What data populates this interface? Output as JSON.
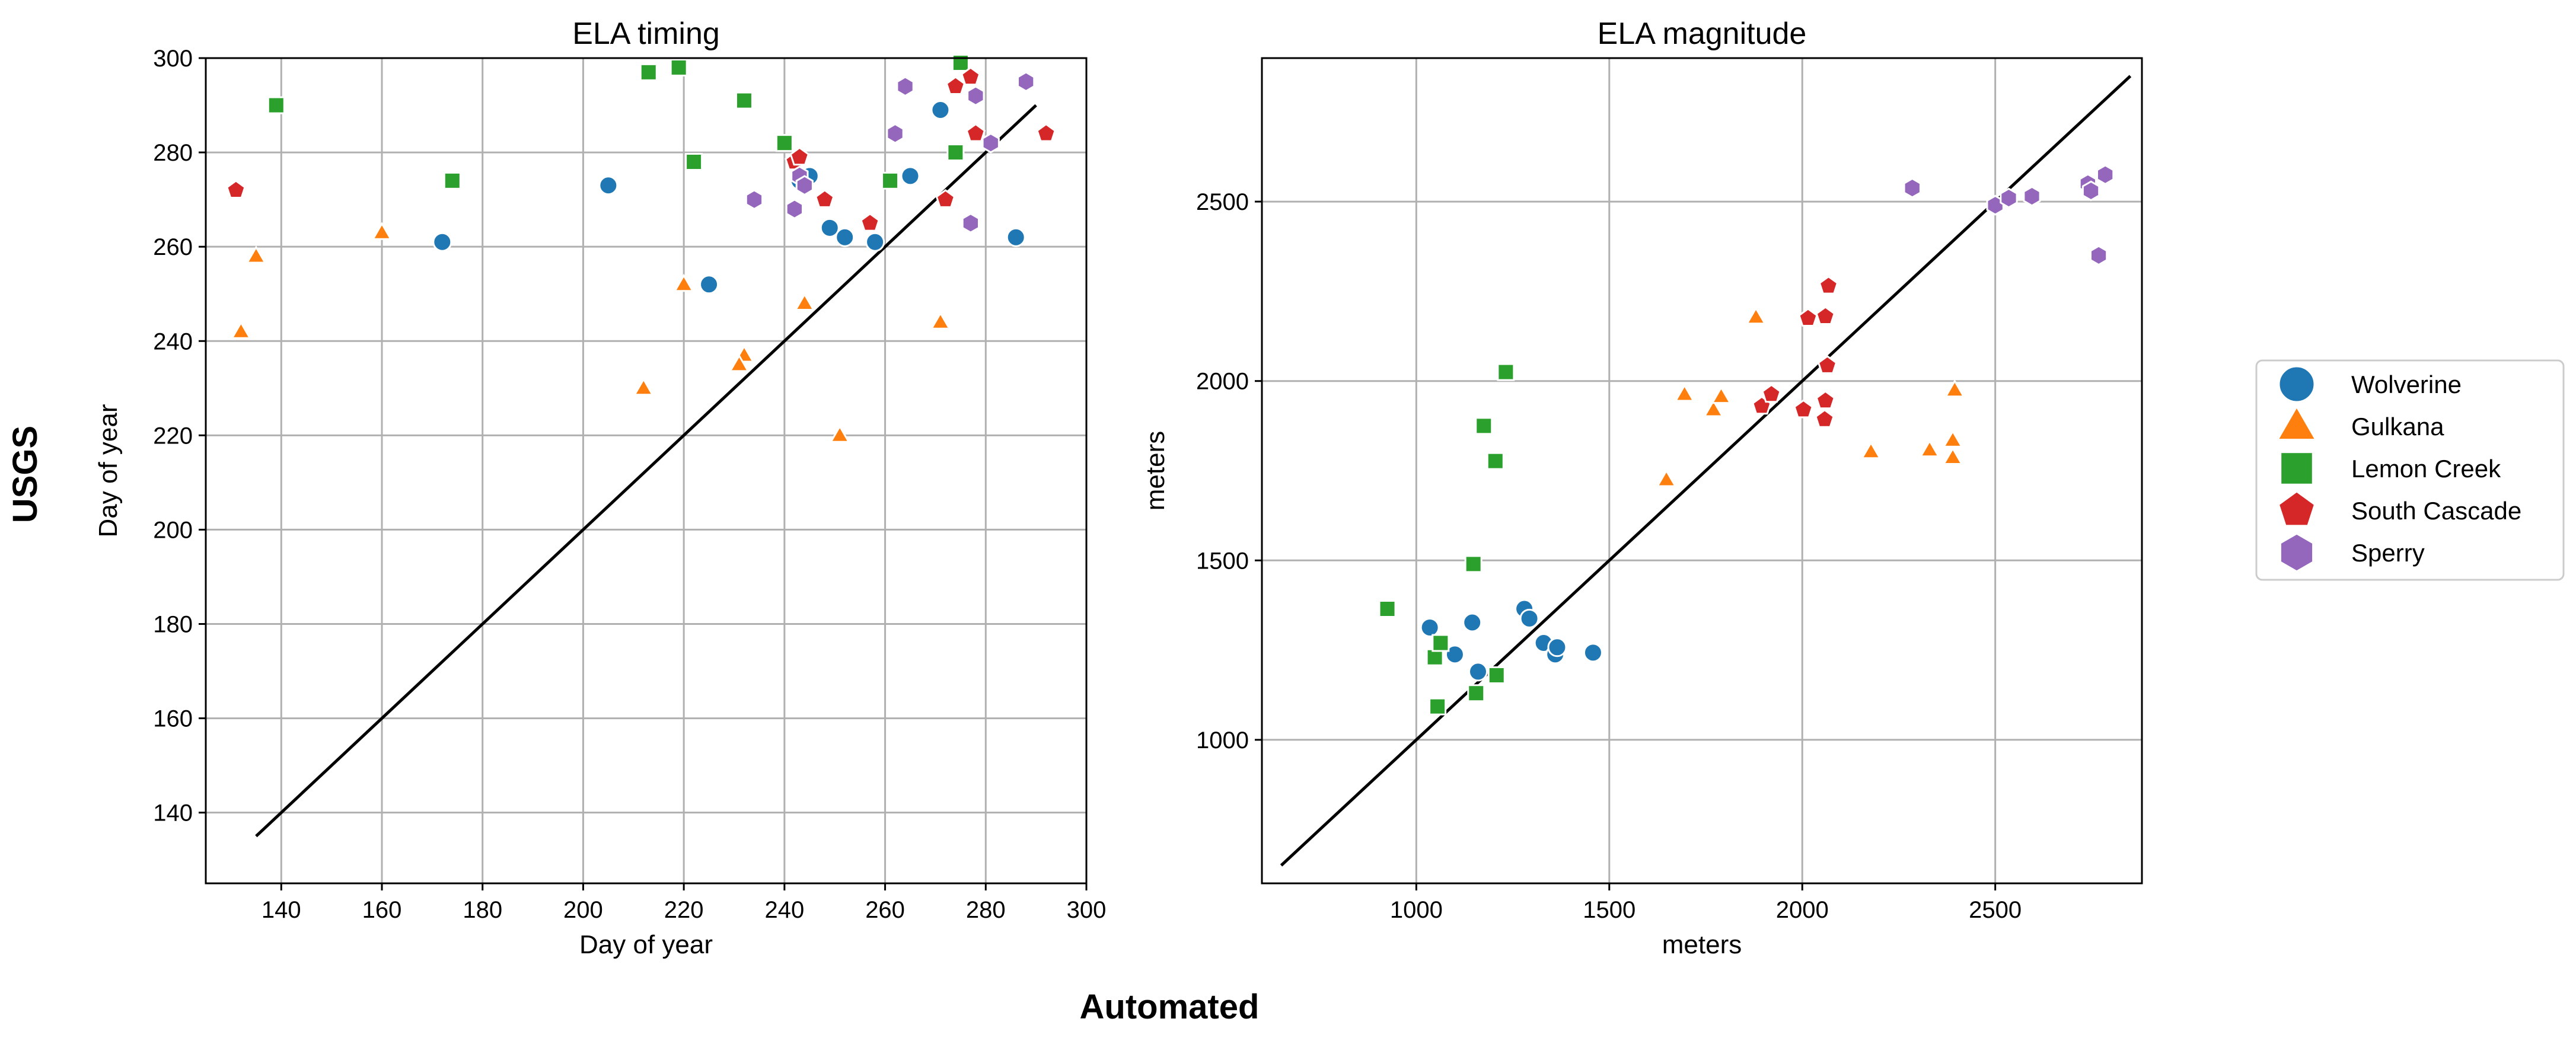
{
  "figure": {
    "ylabel": "USGS",
    "xlabel": "Automated"
  },
  "legend": {
    "placement": "right",
    "entries": [
      {
        "name": "Wolverine",
        "marker": "circle",
        "color": "#1f77b4"
      },
      {
        "name": "Gulkana",
        "marker": "triangle",
        "color": "#ff7f0e"
      },
      {
        "name": "Lemon Creek",
        "marker": "square",
        "color": "#2ca02c"
      },
      {
        "name": "South Cascade",
        "marker": "pentagon",
        "color": "#d62728"
      },
      {
        "name": "Sperry",
        "marker": "hexagon",
        "color": "#9467bd"
      }
    ]
  },
  "chart_data": [
    {
      "type": "scatter",
      "title": "ELA timing",
      "xlabel": "Day of year",
      "ylabel": "Day of year",
      "xlim": [
        125,
        300
      ],
      "ylim": [
        125,
        300
      ],
      "xticks": [
        140,
        160,
        180,
        200,
        220,
        240,
        260,
        280,
        300
      ],
      "yticks": [
        140,
        160,
        180,
        200,
        220,
        240,
        260,
        280,
        300
      ],
      "grid": true,
      "reference_line": [
        [
          135,
          135
        ],
        [
          290,
          290
        ]
      ],
      "series": [
        {
          "name": "Wolverine",
          "marker": "circle",
          "color": "#1f77b4",
          "points": [
            [
              172,
              261
            ],
            [
              205,
              273
            ],
            [
              225,
              252
            ],
            [
              245,
              275
            ],
            [
              249,
              264
            ],
            [
              252,
              262
            ],
            [
              258,
              261
            ],
            [
              265,
              275
            ],
            [
              271,
              289
            ],
            [
              286,
              262
            ],
            [
              243,
              274
            ]
          ]
        },
        {
          "name": "Gulkana",
          "marker": "triangle",
          "color": "#ff7f0e",
          "points": [
            [
              132,
              242
            ],
            [
              135,
              258
            ],
            [
              160,
              263
            ],
            [
              212,
              230
            ],
            [
              220,
              252
            ],
            [
              232,
              237
            ],
            [
              244,
              248
            ],
            [
              251,
              220
            ],
            [
              271,
              244
            ],
            [
              231,
              235
            ]
          ]
        },
        {
          "name": "Lemon Creek",
          "marker": "square",
          "color": "#2ca02c",
          "points": [
            [
              139,
              290
            ],
            [
              174,
              274
            ],
            [
              213,
              297
            ],
            [
              219,
              298
            ],
            [
              222,
              278
            ],
            [
              232,
              291
            ],
            [
              240,
              282
            ],
            [
              261,
              274
            ],
            [
              274,
              280
            ],
            [
              275,
              299
            ]
          ]
        },
        {
          "name": "South Cascade",
          "marker": "pentagon",
          "color": "#d62728",
          "points": [
            [
              131,
              272
            ],
            [
              242,
              278
            ],
            [
              243,
              279
            ],
            [
              248,
              270
            ],
            [
              257,
              265
            ],
            [
              272,
              270
            ],
            [
              274,
              294
            ],
            [
              277,
              296
            ],
            [
              278,
              284
            ],
            [
              292,
              284
            ]
          ]
        },
        {
          "name": "Sperry",
          "marker": "hexagon",
          "color": "#9467bd",
          "points": [
            [
              234,
              270
            ],
            [
              242,
              268
            ],
            [
              243,
              275
            ],
            [
              244,
              273
            ],
            [
              262,
              284
            ],
            [
              264,
              294
            ],
            [
              277,
              265
            ],
            [
              278,
              292
            ],
            [
              281,
              282
            ],
            [
              288,
              295
            ]
          ]
        }
      ]
    },
    {
      "type": "scatter",
      "title": "ELA magnitude",
      "xlabel": "meters",
      "ylabel": "meters",
      "xlim": [
        600,
        2880
      ],
      "ylim": [
        600,
        2900
      ],
      "xticks": [
        1000,
        1500,
        2000,
        2500
      ],
      "yticks": [
        1000,
        1500,
        2000,
        2500
      ],
      "grid": true,
      "reference_line": [
        [
          650,
          650
        ],
        [
          2850,
          2850
        ]
      ],
      "series": [
        {
          "name": "Wolverine",
          "marker": "circle",
          "color": "#1f77b4",
          "points": [
            [
              1035,
              1313
            ],
            [
              1100,
              1238
            ],
            [
              1145,
              1327
            ],
            [
              1160,
              1190
            ],
            [
              1280,
              1365
            ],
            [
              1293,
              1338
            ],
            [
              1330,
              1270
            ],
            [
              1360,
              1238
            ],
            [
              1365,
              1258
            ],
            [
              1458,
              1243
            ]
          ]
        },
        {
          "name": "Gulkana",
          "marker": "triangle",
          "color": "#ff7f0e",
          "points": [
            [
              1648,
              1725
            ],
            [
              1695,
              1963
            ],
            [
              1770,
              1920
            ],
            [
              1790,
              1957
            ],
            [
              1880,
              2178
            ],
            [
              2178,
              1803
            ],
            [
              2330,
              1808
            ],
            [
              2390,
              1835
            ],
            [
              2390,
              1787
            ],
            [
              2395,
              1975
            ]
          ]
        },
        {
          "name": "Lemon Creek",
          "marker": "square",
          "color": "#2ca02c",
          "points": [
            [
              925,
              1365
            ],
            [
              1048,
              1230
            ],
            [
              1055,
              1093
            ],
            [
              1063,
              1270
            ],
            [
              1148,
              1490
            ],
            [
              1155,
              1130
            ],
            [
              1175,
              1875
            ],
            [
              1205,
              1777
            ],
            [
              1208,
              1180
            ],
            [
              1232,
              2025
            ]
          ]
        },
        {
          "name": "South Cascade",
          "marker": "pentagon",
          "color": "#d62728",
          "points": [
            [
              1895,
              1930
            ],
            [
              1920,
              1963
            ],
            [
              2003,
              1920
            ],
            [
              2015,
              2175
            ],
            [
              2058,
              1893
            ],
            [
              2060,
              1945
            ],
            [
              2060,
              2180
            ],
            [
              2065,
              2043
            ],
            [
              2068,
              2265
            ]
          ]
        },
        {
          "name": "Sperry",
          "marker": "hexagon",
          "color": "#9467bd",
          "points": [
            [
              2285,
              2538
            ],
            [
              2500,
              2490
            ],
            [
              2535,
              2510
            ],
            [
              2595,
              2515
            ],
            [
              2740,
              2550
            ],
            [
              2748,
              2530
            ],
            [
              2768,
              2350
            ],
            [
              2785,
              2575
            ]
          ]
        }
      ]
    }
  ]
}
